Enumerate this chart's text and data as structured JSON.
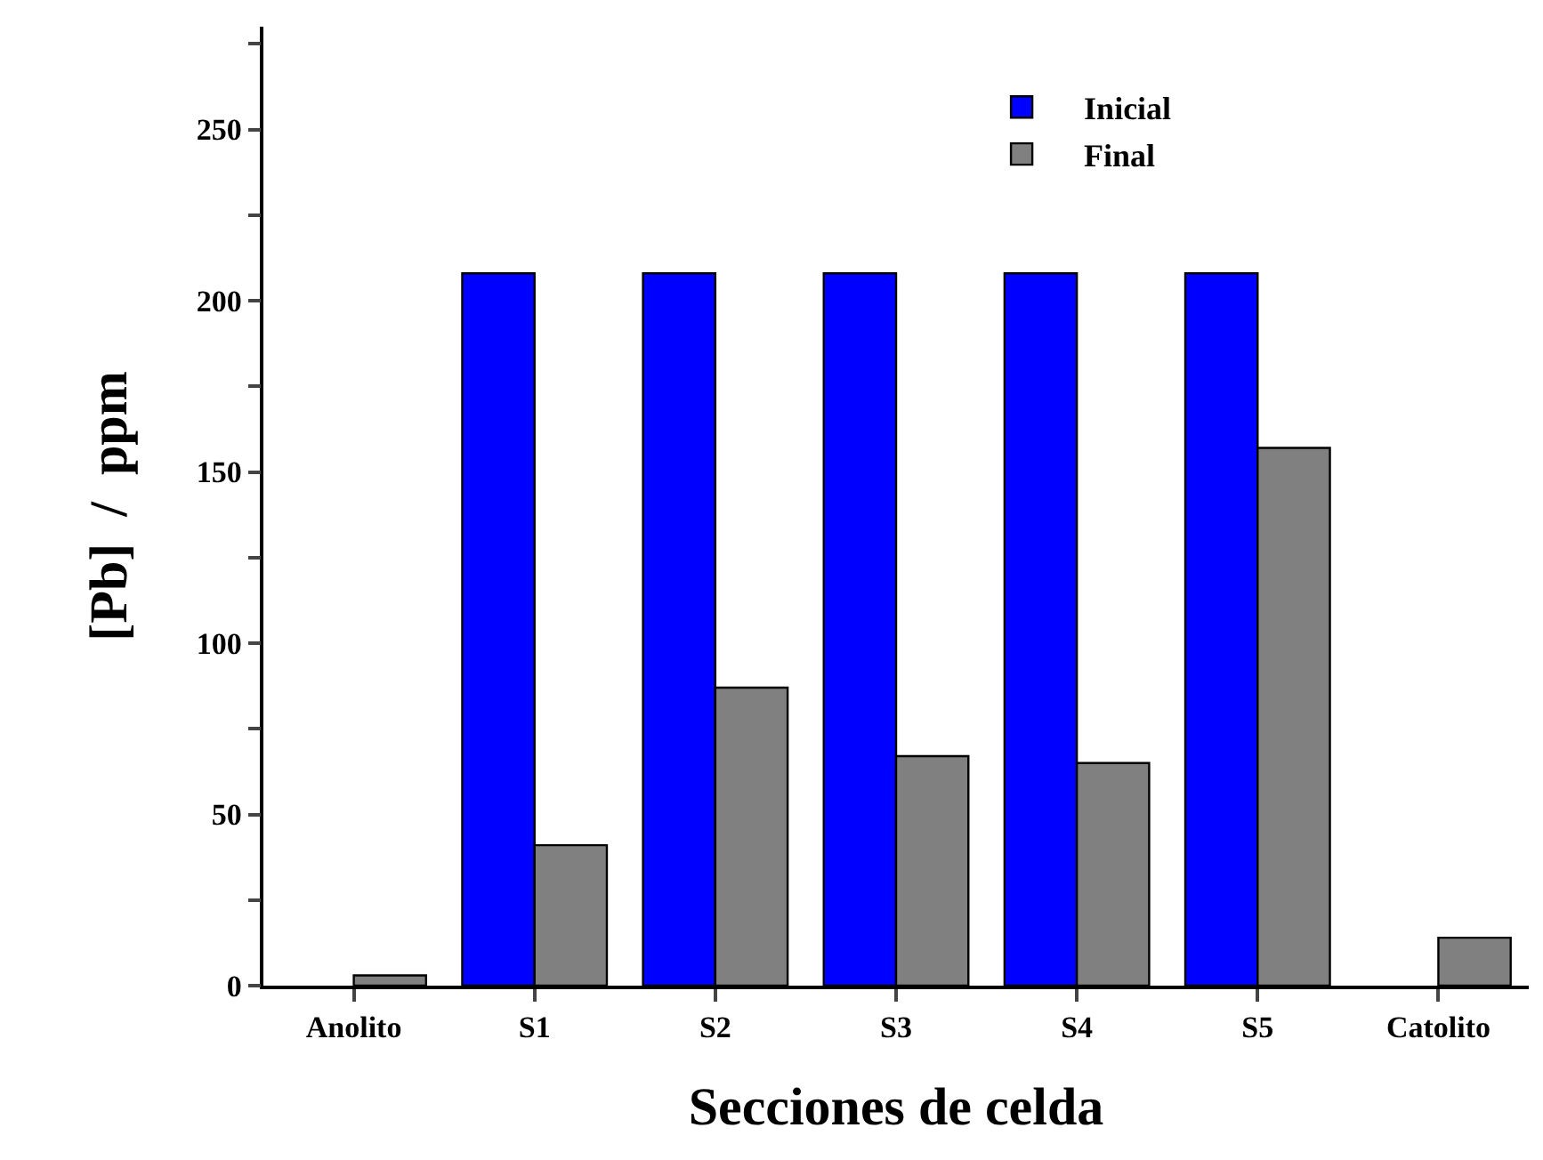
{
  "chart_data": {
    "type": "bar",
    "xlabel": "Secciones de celda",
    "ylabel": "[Pb]  /  ppm",
    "categories": [
      "Anolito",
      "S1",
      "S2",
      "S3",
      "S4",
      "S5",
      "Catolito"
    ],
    "series": [
      {
        "name": "Inicial",
        "color": "#0000ff",
        "values": [
          null,
          208,
          208,
          208,
          208,
          208,
          null
        ]
      },
      {
        "name": "Final",
        "color": "#808080",
        "values": [
          3,
          41,
          87,
          67,
          65,
          157,
          14
        ]
      }
    ],
    "ylim": [
      0,
      280
    ],
    "yticks": [
      0,
      {
        "value": 25,
        "label": null
      },
      50,
      {
        "value": 75,
        "label": null
      },
      100,
      {
        "value": 125,
        "label": null
      },
      150,
      {
        "value": 175,
        "label": null
      },
      200,
      {
        "value": 225,
        "label": null
      },
      250,
      {
        "value": 275,
        "label": null
      }
    ],
    "legend": "top right"
  }
}
